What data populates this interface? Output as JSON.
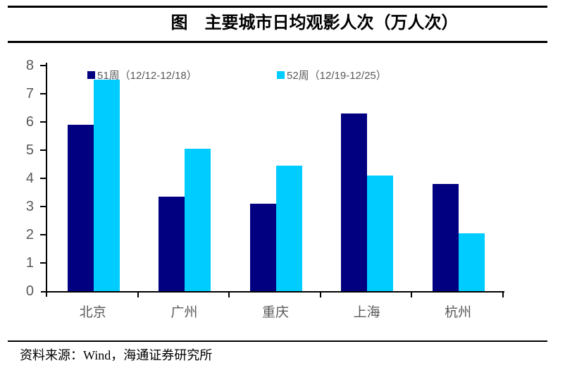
{
  "header": {
    "title": "图　主要城市日均观影人次（万人次）"
  },
  "legend": {
    "items": [
      {
        "label": "51周（12/12-12/18）",
        "color": "#000080"
      },
      {
        "label": "52周（12/19-12/25）",
        "color": "#00CCFF"
      }
    ]
  },
  "chart_data": {
    "type": "bar",
    "title": "图　主要城市日均观影人次（万人次）",
    "categories": [
      "北京",
      "广州",
      "重庆",
      "上海",
      "杭州"
    ],
    "series": [
      {
        "name": "51周（12/12-12/18）",
        "color": "#000080",
        "values": [
          5.9,
          3.35,
          3.1,
          6.3,
          3.8
        ]
      },
      {
        "name": "52周（12/19-12/25）",
        "color": "#00CCFF",
        "values": [
          7.5,
          5.05,
          4.45,
          4.1,
          2.05
        ]
      }
    ],
    "xlabel": "",
    "ylabel": "",
    "ylim": [
      0,
      8
    ],
    "yticks": [
      0,
      1,
      2,
      3,
      4,
      5,
      6,
      7,
      8
    ],
    "grid": false,
    "legend_position": "top"
  },
  "footer": {
    "source": "资料来源：Wind，海通证券研究所"
  },
  "colors": {
    "bar_week51": "#000080",
    "bar_week52": "#00CCFF",
    "axis": "#000000",
    "tick_label": "#595959",
    "title_text": "#000000"
  }
}
